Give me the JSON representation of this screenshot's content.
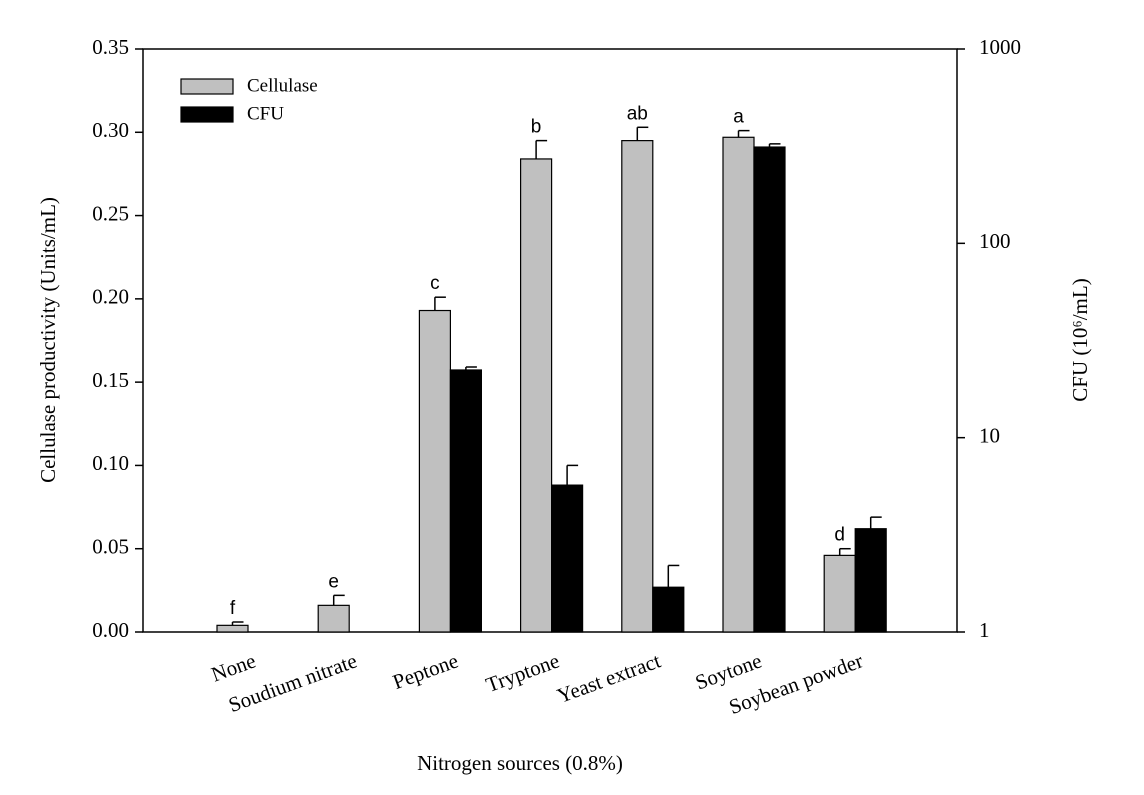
{
  "chart_data": {
    "type": "bar",
    "xlabel": "Nitrogen sources (0.8%)",
    "ylabel": "Cellulase productivity (Units/mL)",
    "y2label": "CFU (10⁶/mL)",
    "categories": [
      "None",
      "Soudium nitrate",
      "Peptone",
      "Tryptone",
      "Yeast extract",
      "Soytone",
      "Soybean powder"
    ],
    "series": [
      {
        "name": "Cellulase",
        "color": "#c0c0c0",
        "values": [
          0.004,
          0.016,
          0.193,
          0.284,
          0.295,
          0.297,
          0.046
        ],
        "errors": [
          0.002,
          0.006,
          0.008,
          0.011,
          0.008,
          0.004,
          0.004
        ]
      },
      {
        "name": "CFU",
        "color": "#000000",
        "axis": "y2",
        "values": [
          null,
          null,
          22.3,
          5.7,
          1.7,
          313,
          3.4
        ],
        "errors": [
          null,
          null,
          0.8,
          1.5,
          0.5,
          12,
          0.5
        ]
      }
    ],
    "annotations": [
      "f",
      "e",
      "c",
      "b",
      "ab",
      "a",
      "d"
    ],
    "ylim": [
      0,
      0.35
    ],
    "yticks": [
      {
        "value": 0,
        "label": "0.00"
      },
      {
        "value": 0.05,
        "label": "0.05"
      },
      {
        "value": 0.1,
        "label": "0.10"
      },
      {
        "value": 0.15,
        "label": "0.15"
      },
      {
        "value": 0.2,
        "label": "0.20"
      },
      {
        "value": 0.25,
        "label": "0.25"
      },
      {
        "value": 0.3,
        "label": "0.30"
      },
      {
        "value": 0.35,
        "label": "0.35"
      }
    ],
    "y2lim": [
      1,
      1000
    ],
    "y2ticks": [
      1,
      10,
      100,
      1000
    ],
    "y2log": true,
    "legend": "upper left"
  }
}
